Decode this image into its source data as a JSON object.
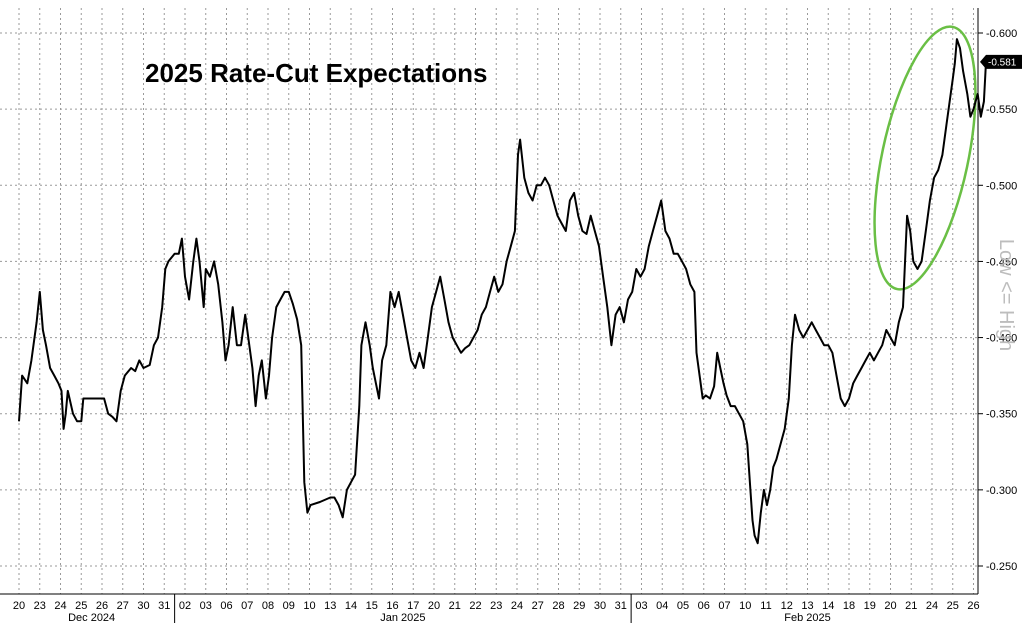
{
  "chart_data": {
    "type": "line",
    "title": "2025 Rate-Cut Expectations",
    "side_label": "Low <= High",
    "y_axis_side": "right",
    "y_inverted": true,
    "ylim": [
      0.24,
      0.61
    ],
    "yticks": [
      "-0.250",
      "-0.300",
      "-0.350",
      "-0.400",
      "-0.450",
      "-0.500",
      "-0.550",
      "-0.600"
    ],
    "grid": true,
    "last_value_label": "-0.581",
    "days": [
      "20",
      "23",
      "24",
      "25",
      "26",
      "27",
      "30",
      "31",
      "02",
      "03",
      "06",
      "07",
      "08",
      "09",
      "10",
      "13",
      "14",
      "15",
      "16",
      "17",
      "20",
      "21",
      "22",
      "23",
      "24",
      "27",
      "28",
      "29",
      "30",
      "31",
      "03",
      "04",
      "05",
      "06",
      "07",
      "10",
      "11",
      "12",
      "13",
      "14",
      "18",
      "19",
      "20",
      "21",
      "24",
      "25",
      "26"
    ],
    "months": [
      {
        "label": "Dec 2024",
        "start": 0,
        "end": 7
      },
      {
        "label": "Jan 2025",
        "start": 8,
        "end": 29
      },
      {
        "label": "Feb 2025",
        "start": 30,
        "end": 46
      }
    ],
    "series": [
      {
        "values": [
          [
            0.0,
            0.345
          ],
          [
            0.15,
            0.375
          ],
          [
            0.4,
            0.37
          ],
          [
            0.6,
            0.385
          ],
          [
            0.85,
            0.41
          ],
          [
            1.0,
            0.43
          ],
          [
            1.15,
            0.405
          ],
          [
            1.3,
            0.395
          ],
          [
            1.5,
            0.38
          ],
          [
            1.7,
            0.375
          ],
          [
            1.9,
            0.37
          ],
          [
            2.05,
            0.365
          ],
          [
            2.15,
            0.34
          ],
          [
            2.25,
            0.35
          ],
          [
            2.35,
            0.365
          ],
          [
            2.6,
            0.35
          ],
          [
            2.8,
            0.345
          ],
          [
            3.0,
            0.345
          ],
          [
            3.1,
            0.36
          ],
          [
            3.6,
            0.36
          ],
          [
            4.1,
            0.36
          ],
          [
            4.3,
            0.35
          ],
          [
            4.5,
            0.348
          ],
          [
            4.7,
            0.345
          ],
          [
            4.9,
            0.365
          ],
          [
            5.1,
            0.375
          ],
          [
            5.4,
            0.38
          ],
          [
            5.6,
            0.378
          ],
          [
            5.8,
            0.385
          ],
          [
            6.0,
            0.38
          ],
          [
            6.3,
            0.382
          ],
          [
            6.5,
            0.395
          ],
          [
            6.7,
            0.4
          ],
          [
            6.9,
            0.42
          ],
          [
            7.05,
            0.445
          ],
          [
            7.2,
            0.45
          ],
          [
            7.5,
            0.455
          ],
          [
            7.7,
            0.455
          ],
          [
            7.85,
            0.465
          ],
          [
            8.0,
            0.44
          ],
          [
            8.2,
            0.425
          ],
          [
            8.4,
            0.45
          ],
          [
            8.55,
            0.465
          ],
          [
            8.7,
            0.45
          ],
          [
            8.9,
            0.42
          ],
          [
            9.0,
            0.445
          ],
          [
            9.2,
            0.44
          ],
          [
            9.4,
            0.45
          ],
          [
            9.6,
            0.435
          ],
          [
            9.8,
            0.41
          ],
          [
            9.95,
            0.385
          ],
          [
            10.1,
            0.395
          ],
          [
            10.3,
            0.42
          ],
          [
            10.5,
            0.395
          ],
          [
            10.7,
            0.395
          ],
          [
            10.9,
            0.415
          ],
          [
            11.1,
            0.395
          ],
          [
            11.25,
            0.38
          ],
          [
            11.4,
            0.355
          ],
          [
            11.55,
            0.375
          ],
          [
            11.7,
            0.385
          ],
          [
            11.9,
            0.36
          ],
          [
            12.05,
            0.375
          ],
          [
            12.2,
            0.4
          ],
          [
            12.4,
            0.42
          ],
          [
            12.6,
            0.425
          ],
          [
            12.8,
            0.43
          ],
          [
            13.0,
            0.43
          ],
          [
            13.2,
            0.422
          ],
          [
            13.4,
            0.412
          ],
          [
            13.6,
            0.395
          ],
          [
            13.75,
            0.305
          ],
          [
            13.9,
            0.285
          ],
          [
            14.05,
            0.29
          ],
          [
            14.5,
            0.292
          ],
          [
            15.0,
            0.295
          ],
          [
            15.2,
            0.295
          ],
          [
            15.4,
            0.29
          ],
          [
            15.6,
            0.282
          ],
          [
            15.8,
            0.3
          ],
          [
            16.0,
            0.305
          ],
          [
            16.2,
            0.31
          ],
          [
            16.4,
            0.355
          ],
          [
            16.5,
            0.395
          ],
          [
            16.7,
            0.41
          ],
          [
            16.9,
            0.395
          ],
          [
            17.05,
            0.38
          ],
          [
            17.2,
            0.37
          ],
          [
            17.35,
            0.36
          ],
          [
            17.5,
            0.385
          ],
          [
            17.7,
            0.395
          ],
          [
            17.9,
            0.43
          ],
          [
            18.1,
            0.42
          ],
          [
            18.3,
            0.43
          ],
          [
            18.5,
            0.415
          ],
          [
            18.7,
            0.4
          ],
          [
            18.9,
            0.385
          ],
          [
            19.1,
            0.38
          ],
          [
            19.3,
            0.39
          ],
          [
            19.5,
            0.38
          ],
          [
            19.7,
            0.4
          ],
          [
            19.9,
            0.42
          ],
          [
            20.1,
            0.43
          ],
          [
            20.3,
            0.44
          ],
          [
            20.5,
            0.425
          ],
          [
            20.7,
            0.41
          ],
          [
            20.9,
            0.4
          ],
          [
            21.1,
            0.395
          ],
          [
            21.3,
            0.39
          ],
          [
            21.5,
            0.393
          ],
          [
            21.7,
            0.395
          ],
          [
            21.9,
            0.4
          ],
          [
            22.1,
            0.405
          ],
          [
            22.3,
            0.415
          ],
          [
            22.5,
            0.42
          ],
          [
            22.7,
            0.43
          ],
          [
            22.9,
            0.44
          ],
          [
            23.1,
            0.43
          ],
          [
            23.3,
            0.435
          ],
          [
            23.5,
            0.45
          ],
          [
            23.7,
            0.46
          ],
          [
            23.9,
            0.47
          ],
          [
            24.05,
            0.52
          ],
          [
            24.15,
            0.53
          ],
          [
            24.35,
            0.505
          ],
          [
            24.55,
            0.495
          ],
          [
            24.75,
            0.49
          ],
          [
            24.95,
            0.5
          ],
          [
            25.15,
            0.5
          ],
          [
            25.35,
            0.505
          ],
          [
            25.55,
            0.5
          ],
          [
            25.75,
            0.49
          ],
          [
            25.95,
            0.48
          ],
          [
            26.15,
            0.475
          ],
          [
            26.35,
            0.47
          ],
          [
            26.55,
            0.49
          ],
          [
            26.75,
            0.495
          ],
          [
            26.95,
            0.48
          ],
          [
            27.15,
            0.47
          ],
          [
            27.35,
            0.468
          ],
          [
            27.55,
            0.48
          ],
          [
            27.75,
            0.47
          ],
          [
            27.95,
            0.46
          ],
          [
            28.15,
            0.44
          ],
          [
            28.35,
            0.42
          ],
          [
            28.55,
            0.395
          ],
          [
            28.75,
            0.415
          ],
          [
            28.95,
            0.42
          ],
          [
            29.15,
            0.41
          ],
          [
            29.35,
            0.425
          ],
          [
            29.55,
            0.43
          ],
          [
            29.75,
            0.445
          ],
          [
            29.95,
            0.44
          ],
          [
            30.15,
            0.445
          ],
          [
            30.35,
            0.46
          ],
          [
            30.55,
            0.47
          ],
          [
            30.75,
            0.48
          ],
          [
            30.95,
            0.49
          ],
          [
            31.15,
            0.47
          ],
          [
            31.35,
            0.465
          ],
          [
            31.55,
            0.455
          ],
          [
            31.75,
            0.455
          ],
          [
            31.95,
            0.45
          ],
          [
            32.15,
            0.445
          ],
          [
            32.35,
            0.435
          ],
          [
            32.55,
            0.43
          ],
          [
            32.65,
            0.39
          ],
          [
            32.8,
            0.375
          ],
          [
            32.95,
            0.36
          ],
          [
            33.1,
            0.362
          ],
          [
            33.3,
            0.36
          ],
          [
            33.5,
            0.368
          ],
          [
            33.65,
            0.39
          ],
          [
            33.8,
            0.38
          ],
          [
            33.95,
            0.37
          ],
          [
            34.1,
            0.362
          ],
          [
            34.3,
            0.355
          ],
          [
            34.5,
            0.355
          ],
          [
            34.7,
            0.35
          ],
          [
            34.9,
            0.345
          ],
          [
            35.1,
            0.33
          ],
          [
            35.25,
            0.3
          ],
          [
            35.35,
            0.28
          ],
          [
            35.45,
            0.27
          ],
          [
            35.6,
            0.265
          ],
          [
            35.75,
            0.285
          ],
          [
            35.9,
            0.3
          ],
          [
            36.05,
            0.29
          ],
          [
            36.2,
            0.3
          ],
          [
            36.35,
            0.315
          ],
          [
            36.5,
            0.32
          ],
          [
            36.7,
            0.33
          ],
          [
            36.9,
            0.34
          ],
          [
            37.1,
            0.36
          ],
          [
            37.25,
            0.395
          ],
          [
            37.4,
            0.415
          ],
          [
            37.6,
            0.405
          ],
          [
            37.8,
            0.4
          ],
          [
            38.0,
            0.405
          ],
          [
            38.2,
            0.41
          ],
          [
            38.4,
            0.405
          ],
          [
            38.6,
            0.4
          ],
          [
            38.8,
            0.395
          ],
          [
            39.0,
            0.395
          ],
          [
            39.2,
            0.39
          ],
          [
            39.4,
            0.375
          ],
          [
            39.6,
            0.36
          ],
          [
            39.8,
            0.355
          ],
          [
            40.0,
            0.36
          ],
          [
            40.2,
            0.37
          ],
          [
            40.4,
            0.375
          ],
          [
            40.6,
            0.38
          ],
          [
            40.8,
            0.385
          ],
          [
            41.0,
            0.39
          ],
          [
            41.2,
            0.385
          ],
          [
            41.4,
            0.39
          ],
          [
            41.6,
            0.395
          ],
          [
            41.8,
            0.405
          ],
          [
            42.0,
            0.4
          ],
          [
            42.2,
            0.395
          ],
          [
            42.4,
            0.41
          ],
          [
            42.6,
            0.42
          ],
          [
            42.8,
            0.48
          ],
          [
            42.95,
            0.47
          ],
          [
            43.1,
            0.45
          ],
          [
            43.3,
            0.445
          ],
          [
            43.5,
            0.45
          ],
          [
            43.7,
            0.47
          ],
          [
            43.9,
            0.49
          ],
          [
            44.1,
            0.505
          ],
          [
            44.3,
            0.51
          ],
          [
            44.5,
            0.52
          ],
          [
            44.7,
            0.54
          ],
          [
            44.9,
            0.56
          ],
          [
            45.0,
            0.57
          ],
          [
            45.1,
            0.58
          ],
          [
            45.2,
            0.596
          ],
          [
            45.35,
            0.59
          ],
          [
            45.5,
            0.575
          ],
          [
            45.7,
            0.56
          ],
          [
            45.85,
            0.545
          ],
          [
            46.0,
            0.55
          ],
          [
            46.2,
            0.56
          ],
          [
            46.35,
            0.545
          ],
          [
            46.5,
            0.555
          ],
          [
            46.6,
            0.581
          ]
        ]
      }
    ],
    "annotation": {
      "shape": "ellipse",
      "color": "#6abf45",
      "target": "Feb 21–26 surge"
    }
  }
}
